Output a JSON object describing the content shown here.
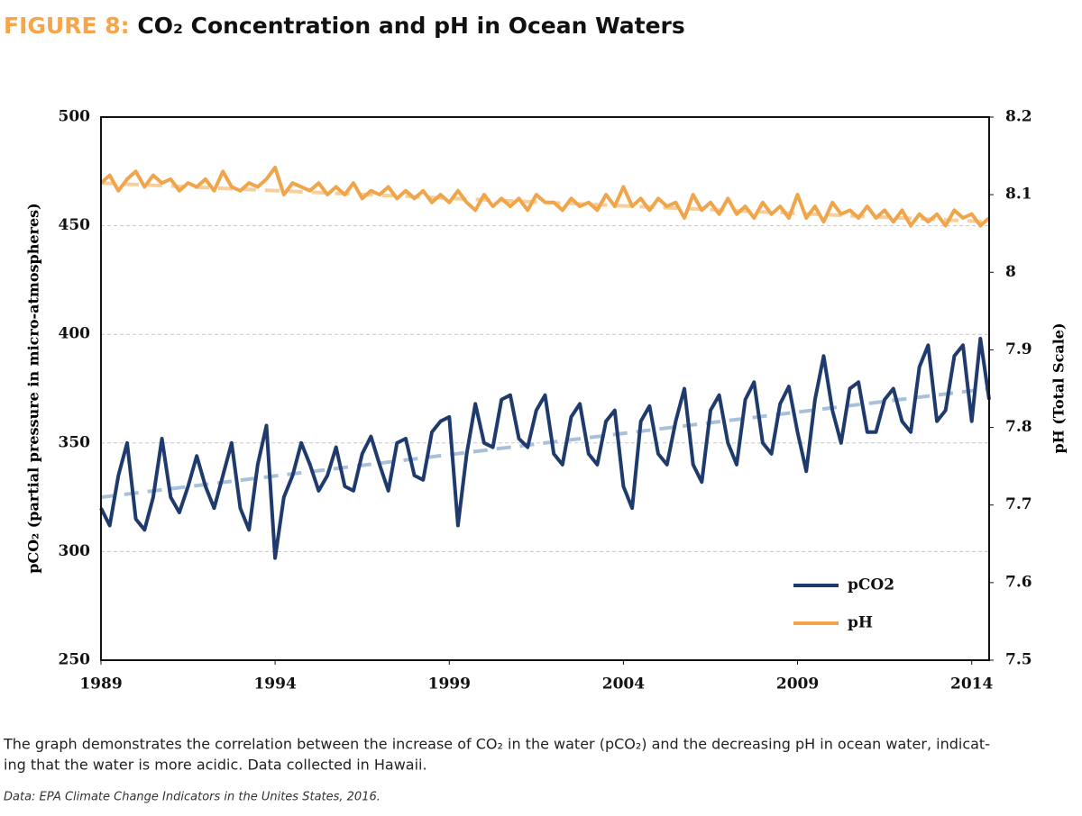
{
  "chart_data": {
    "type": "line",
    "title_prefix": "FIGURE 8:",
    "title": "CO₂ Concentration and pH in Ocean Waters",
    "ylabel": "pCO₂ (partial pressure in micro-atmospheres)",
    "y2label": "pH (Total Scale)",
    "caption": [
      "The graph demonstrates the correlation between the increase of CO₂ in the water (pCO₂) and the decreasing pH in ocean water, indicat-",
      "ing that the water is more acidic. Data collected in Hawaii."
    ],
    "source": "Data: EPA Climate Change Indicators in the Unites States, 2016.",
    "xlim": [
      1989,
      2014.5
    ],
    "xticks": [
      1989,
      1994,
      1999,
      2004,
      2009,
      2014
    ],
    "ylim": [
      250,
      500
    ],
    "yticks": [
      250,
      300,
      350,
      400,
      450,
      500
    ],
    "y2lim": [
      7.5,
      8.2
    ],
    "y2ticks": [
      7.5,
      7.6,
      7.7,
      7.8,
      7.9,
      8,
      8.1,
      8.2
    ],
    "grid": true,
    "legend": "lower right",
    "x": [
      1989,
      1989.25,
      1989.5,
      1989.75,
      1990,
      1990.25,
      1990.5,
      1990.75,
      1991,
      1991.25,
      1991.5,
      1991.75,
      1992,
      1992.25,
      1992.5,
      1992.75,
      1993,
      1993.25,
      1993.5,
      1993.75,
      1994,
      1994.25,
      1994.5,
      1994.75,
      1995,
      1995.25,
      1995.5,
      1995.75,
      1996,
      1996.25,
      1996.5,
      1996.75,
      1997,
      1997.25,
      1997.5,
      1997.75,
      1998,
      1998.25,
      1998.5,
      1998.75,
      1999,
      1999.25,
      1999.5,
      1999.75,
      2000,
      2000.25,
      2000.5,
      2000.75,
      2001,
      2001.25,
      2001.5,
      2001.75,
      2002,
      2002.25,
      2002.5,
      2002.75,
      2003,
      2003.25,
      2003.5,
      2003.75,
      2004,
      2004.25,
      2004.5,
      2004.75,
      2005,
      2005.25,
      2005.5,
      2005.75,
      2006,
      2006.25,
      2006.5,
      2006.75,
      2007,
      2007.25,
      2007.5,
      2007.75,
      2008,
      2008.25,
      2008.5,
      2008.75,
      2009,
      2009.25,
      2009.5,
      2009.75,
      2010,
      2010.25,
      2010.5,
      2010.75,
      2011,
      2011.25,
      2011.5,
      2011.75,
      2012,
      2012.25,
      2012.5,
      2012.75,
      2013,
      2013.25,
      2013.5,
      2013.75,
      2014,
      2014.25,
      2014.5
    ],
    "series": [
      {
        "name": "pCO2",
        "color": "#1f3b6e",
        "axis": "y",
        "values": [
          320,
          312,
          335,
          350,
          315,
          310,
          325,
          352,
          325,
          318,
          330,
          344,
          330,
          320,
          335,
          350,
          320,
          310,
          340,
          358,
          297,
          325,
          335,
          350,
          340,
          328,
          335,
          348,
          330,
          328,
          345,
          353,
          340,
          328,
          350,
          352,
          335,
          333,
          355,
          360,
          362,
          312,
          345,
          368,
          350,
          348,
          370,
          372,
          352,
          348,
          365,
          372,
          345,
          340,
          362,
          368,
          345,
          340,
          360,
          365,
          330,
          320,
          360,
          367,
          345,
          340,
          360,
          375,
          340,
          332,
          365,
          372,
          350,
          340,
          370,
          378,
          350,
          345,
          368,
          376,
          355,
          337,
          370,
          390,
          365,
          350,
          375,
          378,
          355,
          355,
          370,
          375,
          360,
          355,
          385,
          395,
          360,
          365,
          390,
          395,
          360,
          398,
          370
        ]
      },
      {
        "name": "pH",
        "color": "#f0a54a",
        "axis": "y2",
        "values": [
          8.115,
          8.125,
          8.105,
          8.12,
          8.13,
          8.11,
          8.125,
          8.115,
          8.12,
          8.105,
          8.115,
          8.11,
          8.12,
          8.105,
          8.13,
          8.11,
          8.105,
          8.115,
          8.11,
          8.12,
          8.135,
          8.1,
          8.115,
          8.11,
          8.105,
          8.115,
          8.1,
          8.11,
          8.1,
          8.115,
          8.095,
          8.105,
          8.1,
          8.11,
          8.095,
          8.105,
          8.095,
          8.105,
          8.09,
          8.1,
          8.09,
          8.105,
          8.09,
          8.08,
          8.1,
          8.085,
          8.095,
          8.085,
          8.095,
          8.08,
          8.1,
          8.09,
          8.09,
          8.08,
          8.095,
          8.085,
          8.09,
          8.08,
          8.1,
          8.085,
          8.11,
          8.085,
          8.095,
          8.08,
          8.095,
          8.085,
          8.09,
          8.07,
          8.1,
          8.08,
          8.09,
          8.075,
          8.095,
          8.075,
          8.085,
          8.07,
          8.09,
          8.075,
          8.085,
          8.07,
          8.1,
          8.07,
          8.085,
          8.065,
          8.09,
          8.075,
          8.08,
          8.07,
          8.085,
          8.07,
          8.08,
          8.065,
          8.08,
          8.06,
          8.075,
          8.065,
          8.075,
          8.06,
          8.08,
          8.07,
          8.075,
          8.06,
          8.07
        ]
      }
    ],
    "trend_lines": [
      {
        "color": "#a9c0db",
        "axis": "y",
        "x": [
          1989,
          2014.5
        ],
        "values": [
          325,
          375
        ]
      },
      {
        "color": "#f6cf9c",
        "axis": "y2",
        "x": [
          1989,
          2014.5
        ],
        "values": [
          8.115,
          8.065
        ]
      }
    ]
  }
}
